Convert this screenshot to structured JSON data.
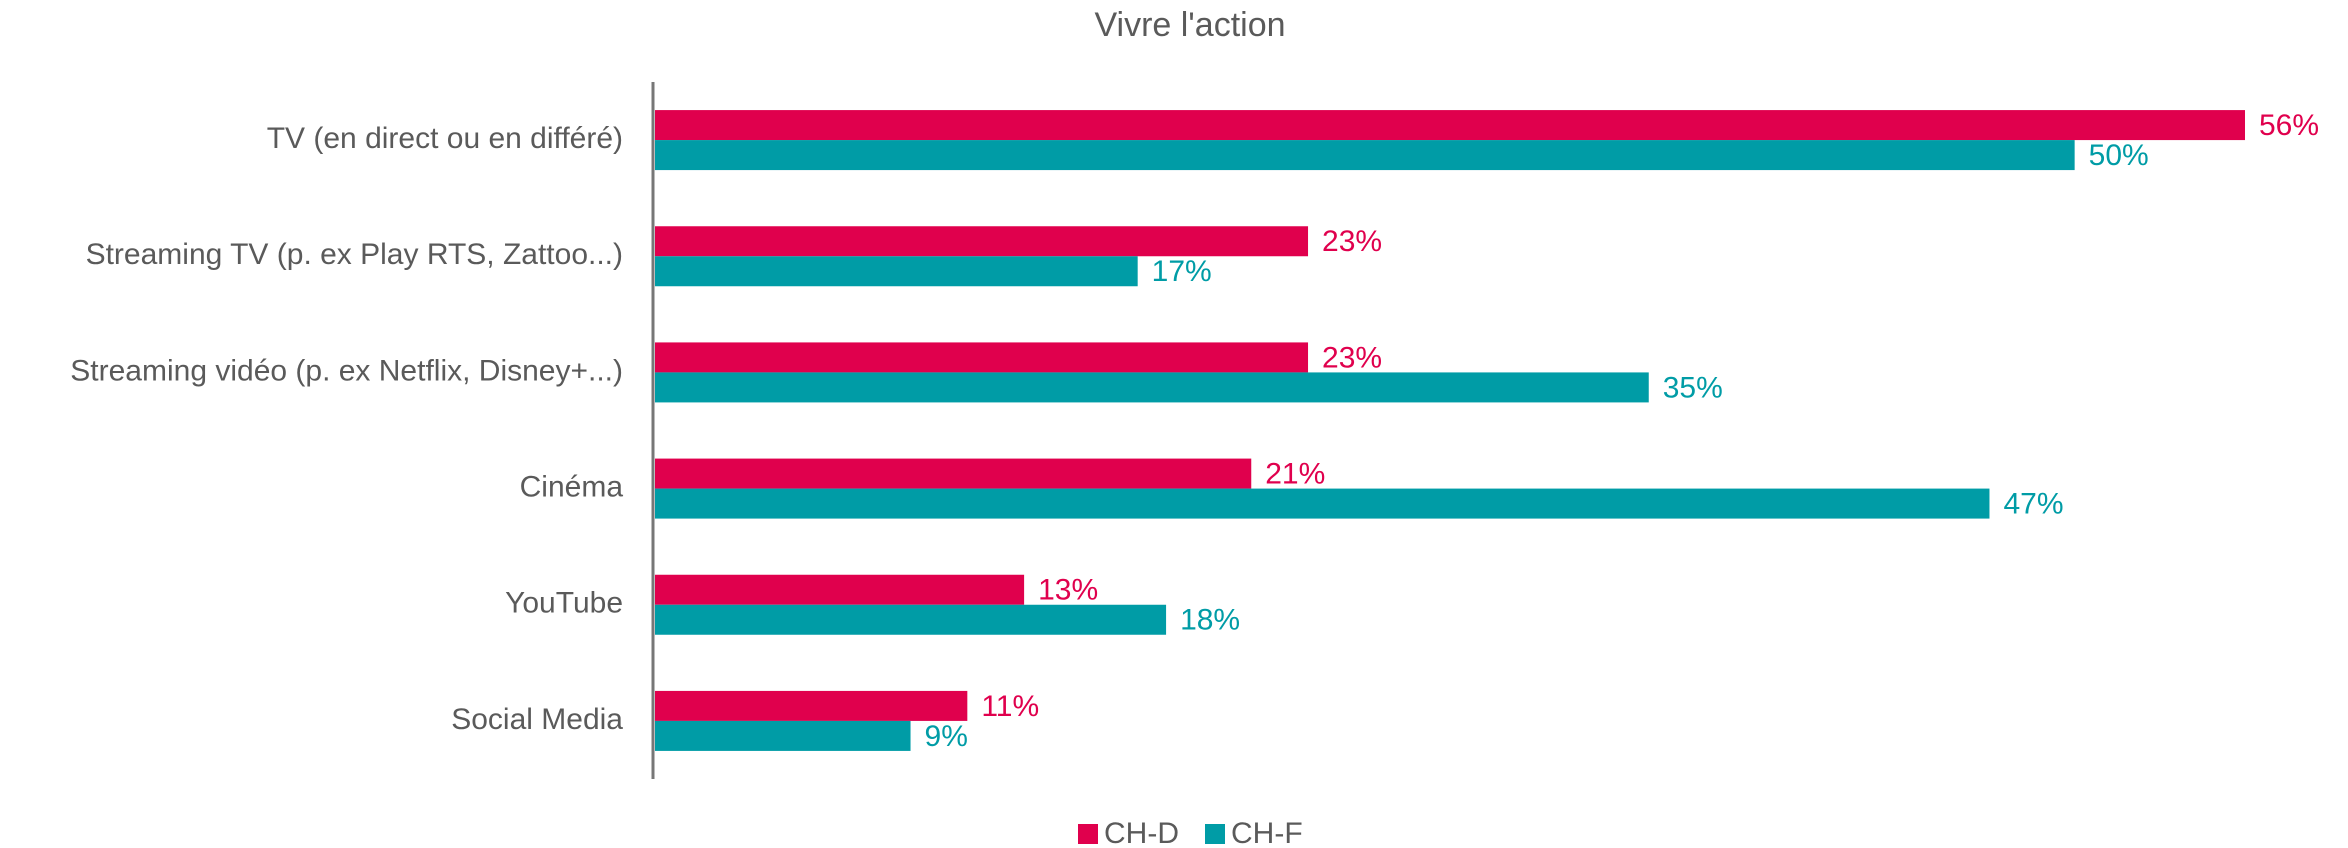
{
  "chart_data": {
    "type": "bar",
    "orientation": "horizontal",
    "title": "Vivre l'action",
    "categories": [
      "TV (en direct ou en différé)",
      "Streaming TV (p. ex Play RTS, Zattoo...)",
      "Streaming vidéo (p. ex Netflix, Disney+...)",
      "Cinéma",
      "YouTube",
      "Social Media"
    ],
    "series": [
      {
        "name": "CH-D",
        "color": "#e0004d",
        "values": [
          56,
          23,
          23,
          21,
          13,
          11
        ],
        "value_labels": [
          "56%",
          "23%",
          "23%",
          "21%",
          "13%",
          "11%"
        ]
      },
      {
        "name": "CH-F",
        "color": "#009ca6",
        "values": [
          50,
          17,
          35,
          47,
          18,
          9
        ],
        "value_labels": [
          "50%",
          "17%",
          "35%",
          "47%",
          "18%",
          "9%"
        ]
      }
    ],
    "legend": "bottom"
  }
}
